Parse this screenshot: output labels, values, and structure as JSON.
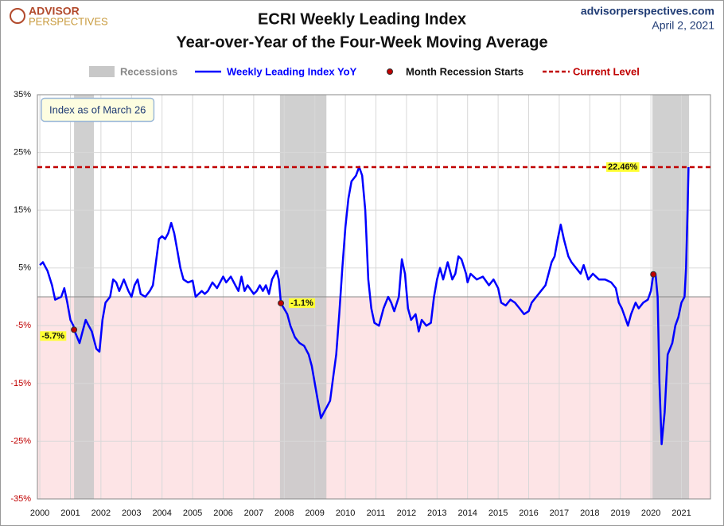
{
  "header": {
    "logo_top": "ADVISOR",
    "logo_bottom": "PERSPECTIVES",
    "site": "advisorperspectives.com",
    "date": "April 2, 2021"
  },
  "chart_data": {
    "type": "line",
    "title": "ECRI Weekly Leading Index",
    "subtitle": "Year-over-Year of the Four-Week Moving Average",
    "note": "Index as of March 26",
    "xlim": [
      1999.92,
      2021.95
    ],
    "xticks": [
      2000,
      2001,
      2002,
      2003,
      2004,
      2005,
      2006,
      2007,
      2008,
      2009,
      2010,
      2011,
      2012,
      2013,
      2014,
      2015,
      2016,
      2017,
      2018,
      2019,
      2020,
      2021
    ],
    "ylim": [
      -35,
      35
    ],
    "yticks": [
      {
        "value": -35,
        "label": "-35%"
      },
      {
        "value": -25,
        "label": "-25%"
      },
      {
        "value": -15,
        "label": "-15%"
      },
      {
        "value": -5,
        "label": "-5%"
      },
      {
        "value": 5,
        "label": "5%"
      },
      {
        "value": 15,
        "label": "15%"
      },
      {
        "value": 25,
        "label": "25%"
      },
      {
        "value": 35,
        "label": "35%"
      }
    ],
    "grid": true,
    "recessions": {
      "name": "Recessions",
      "color": "#c8c8c8",
      "periods": [
        [
          2001.12,
          2001.77
        ],
        [
          2007.86,
          2009.38
        ],
        [
          2020.05,
          2021.25
        ]
      ]
    },
    "series": [
      {
        "name": "Weekly Leading Index YoY",
        "color": "#0000ff",
        "x": [
          2000.0,
          2000.1,
          2000.25,
          2000.4,
          2000.5,
          2000.7,
          2000.8,
          2000.9,
          2001.0,
          2001.1,
          2001.12,
          2001.3,
          2001.4,
          2001.5,
          2001.6,
          2001.7,
          2001.85,
          2001.95,
          2002.05,
          2002.15,
          2002.3,
          2002.4,
          2002.5,
          2002.6,
          2002.75,
          2002.9,
          2003.0,
          2003.1,
          2003.2,
          2003.3,
          2003.45,
          2003.6,
          2003.7,
          2003.8,
          2003.9,
          2004.0,
          2004.1,
          2004.2,
          2004.3,
          2004.4,
          2004.5,
          2004.6,
          2004.7,
          2004.85,
          2005.0,
          2005.1,
          2005.3,
          2005.4,
          2005.5,
          2005.65,
          2005.8,
          2006.0,
          2006.1,
          2006.25,
          2006.4,
          2006.5,
          2006.6,
          2006.7,
          2006.8,
          2007.0,
          2007.1,
          2007.2,
          2007.3,
          2007.4,
          2007.5,
          2007.6,
          2007.75,
          2007.82,
          2007.89,
          2008.1,
          2008.2,
          2008.35,
          2008.5,
          2008.65,
          2008.8,
          2008.9,
          2009.0,
          2009.1,
          2009.2,
          2009.3,
          2009.4,
          2009.5,
          2009.6,
          2009.7,
          2009.8,
          2009.9,
          2010.0,
          2010.1,
          2010.2,
          2010.35,
          2010.45,
          2010.55,
          2010.65,
          2010.75,
          2010.85,
          2010.95,
          2011.1,
          2011.25,
          2011.4,
          2011.5,
          2011.6,
          2011.75,
          2011.85,
          2011.95,
          2012.05,
          2012.15,
          2012.3,
          2012.4,
          2012.5,
          2012.65,
          2012.8,
          2012.9,
          2013.0,
          2013.1,
          2013.2,
          2013.35,
          2013.5,
          2013.6,
          2013.7,
          2013.8,
          2013.95,
          2014.0,
          2014.1,
          2014.3,
          2014.5,
          2014.7,
          2014.85,
          2015.0,
          2015.1,
          2015.25,
          2015.4,
          2015.55,
          2015.7,
          2015.85,
          2016.0,
          2016.1,
          2016.25,
          2016.4,
          2016.55,
          2016.65,
          2016.75,
          2016.85,
          2016.95,
          2017.05,
          2017.15,
          2017.3,
          2017.4,
          2017.55,
          2017.7,
          2017.8,
          2017.95,
          2018.1,
          2018.3,
          2018.5,
          2018.7,
          2018.85,
          2018.95,
          2019.05,
          2019.15,
          2019.25,
          2019.35,
          2019.5,
          2019.6,
          2019.75,
          2019.9,
          2020.0,
          2020.08,
          2020.15,
          2020.22,
          2020.28,
          2020.35,
          2020.45,
          2020.55,
          2020.7,
          2020.8,
          2020.9,
          2021.0,
          2021.1,
          2021.15,
          2021.2,
          2021.23
        ],
        "values": [
          5.5,
          6,
          4.5,
          2,
          -0.5,
          0,
          1.5,
          -1,
          -4,
          -5,
          -5.7,
          -8,
          -6,
          -4,
          -5,
          -6,
          -9,
          -9.5,
          -4,
          -1,
          0,
          3,
          2.5,
          1,
          3,
          1,
          0,
          2,
          3,
          0.5,
          0,
          1,
          2,
          6,
          10,
          10.5,
          10,
          11,
          12.8,
          11,
          8,
          5,
          3,
          2.5,
          2.8,
          0,
          1,
          0.5,
          1,
          2.5,
          1.5,
          3.5,
          2.5,
          3.5,
          2,
          1,
          3.5,
          1,
          2,
          0.5,
          1,
          2,
          1,
          2,
          0.5,
          3,
          4.5,
          3,
          -1.1,
          -3,
          -5,
          -7,
          -8,
          -8.5,
          -10,
          -12,
          -15,
          -18,
          -21,
          -20,
          -19,
          -18,
          -14,
          -10,
          -3,
          5,
          12,
          17,
          20,
          21,
          22.5,
          21,
          15,
          3,
          -2,
          -4.5,
          -5,
          -2,
          0,
          -1,
          -2.5,
          0,
          6.5,
          4,
          -2,
          -4,
          -3,
          -6,
          -4,
          -5,
          -4.5,
          0,
          3,
          5,
          3,
          6,
          3,
          4,
          7,
          6.5,
          4,
          2.5,
          4,
          3,
          3.5,
          2,
          3,
          1.5,
          -1,
          -1.5,
          -0.5,
          -1,
          -2,
          -3,
          -2.5,
          -1,
          0,
          1,
          2,
          4,
          6,
          7,
          10,
          12.5,
          10,
          7,
          6,
          5,
          4,
          5.5,
          3,
          4,
          3,
          3,
          2.5,
          1.5,
          -1,
          -2,
          -3.5,
          -5,
          -3,
          -1,
          -2,
          -1,
          -0.5,
          1,
          3.9,
          4,
          0,
          -15,
          -25.5,
          -20,
          -10,
          -8,
          -5,
          -3.5,
          -1,
          0,
          5,
          15,
          22.46
        ]
      }
    ],
    "recession_starts": {
      "name": "Month Recession Starts",
      "color": "#c00000",
      "x": [
        2001.12,
        2007.89,
        2020.08
      ],
      "values": [
        -5.7,
        -1.1,
        3.9
      ],
      "value_labels": [
        "-5.7%",
        "-1.1%",
        null
      ]
    },
    "current_level": {
      "name": "Current Level",
      "color": "#c00000",
      "value": 22.46,
      "value_label": "22.46%"
    }
  }
}
